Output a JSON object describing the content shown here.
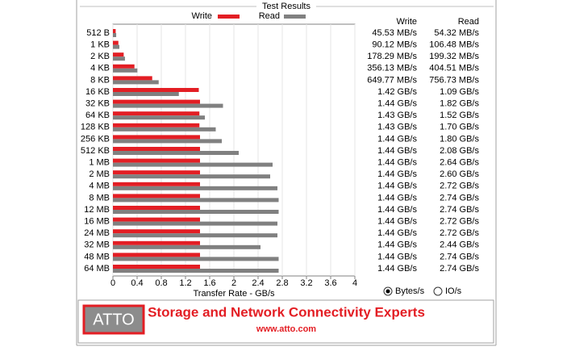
{
  "chart_data": {
    "type": "bar",
    "orientation": "horizontal",
    "title": "Test Results",
    "x_label": "Transfer Rate - GB/s",
    "categories": [
      "512 B",
      "1 KB",
      "2 KB",
      "4 KB",
      "8 KB",
      "16 KB",
      "32 KB",
      "64 KB",
      "128 KB",
      "256 KB",
      "512 KB",
      "1 MB",
      "2 MB",
      "4 MB",
      "8 MB",
      "12 MB",
      "16 MB",
      "24 MB",
      "32 MB",
      "48 MB",
      "64 MB"
    ],
    "series": [
      {
        "name": "Write",
        "color": "#e31e24",
        "values": [
          0.04553,
          0.09012,
          0.17829,
          0.35613,
          0.64977,
          1.42,
          1.44,
          1.43,
          1.43,
          1.44,
          1.44,
          1.44,
          1.44,
          1.44,
          1.44,
          1.44,
          1.44,
          1.44,
          1.44,
          1.44,
          1.44
        ],
        "value_labels": [
          "45.53 MB/s",
          "90.12 MB/s",
          "178.29 MB/s",
          "356.13 MB/s",
          "649.77 MB/s",
          "1.42 GB/s",
          "1.44 GB/s",
          "1.43 GB/s",
          "1.43 GB/s",
          "1.44 GB/s",
          "1.44 GB/s",
          "1.44 GB/s",
          "1.44 GB/s",
          "1.44 GB/s",
          "1.44 GB/s",
          "1.44 GB/s",
          "1.44 GB/s",
          "1.44 GB/s",
          "1.44 GB/s",
          "1.44 GB/s",
          "1.44 GB/s"
        ]
      },
      {
        "name": "Read",
        "color": "#808080",
        "values": [
          0.05432,
          0.10648,
          0.19932,
          0.40451,
          0.75673,
          1.09,
          1.82,
          1.52,
          1.7,
          1.8,
          2.08,
          2.64,
          2.6,
          2.72,
          2.74,
          2.74,
          2.72,
          2.72,
          2.44,
          2.74,
          2.74
        ],
        "value_labels": [
          "54.32 MB/s",
          "106.48 MB/s",
          "199.32 MB/s",
          "404.51 MB/s",
          "756.73 MB/s",
          "1.09 GB/s",
          "1.82 GB/s",
          "1.52 GB/s",
          "1.70 GB/s",
          "1.80 GB/s",
          "2.08 GB/s",
          "2.64 GB/s",
          "2.60 GB/s",
          "2.72 GB/s",
          "2.74 GB/s",
          "2.74 GB/s",
          "2.72 GB/s",
          "2.72 GB/s",
          "2.44 GB/s",
          "2.74 GB/s",
          "2.74 GB/s"
        ]
      }
    ],
    "xlim": [
      0,
      4
    ],
    "xticks": [
      0,
      0.4,
      0.8,
      1.2,
      1.6,
      2,
      2.4,
      2.8,
      3.2,
      3.6,
      4
    ],
    "grid": true
  },
  "units_options": [
    "Bytes/s",
    "IO/s"
  ],
  "selected_unit": 0,
  "banner": {
    "logo": "ATTO",
    "tagline": "Storage and Network Connectivity Experts",
    "url": "www.atto.com"
  }
}
